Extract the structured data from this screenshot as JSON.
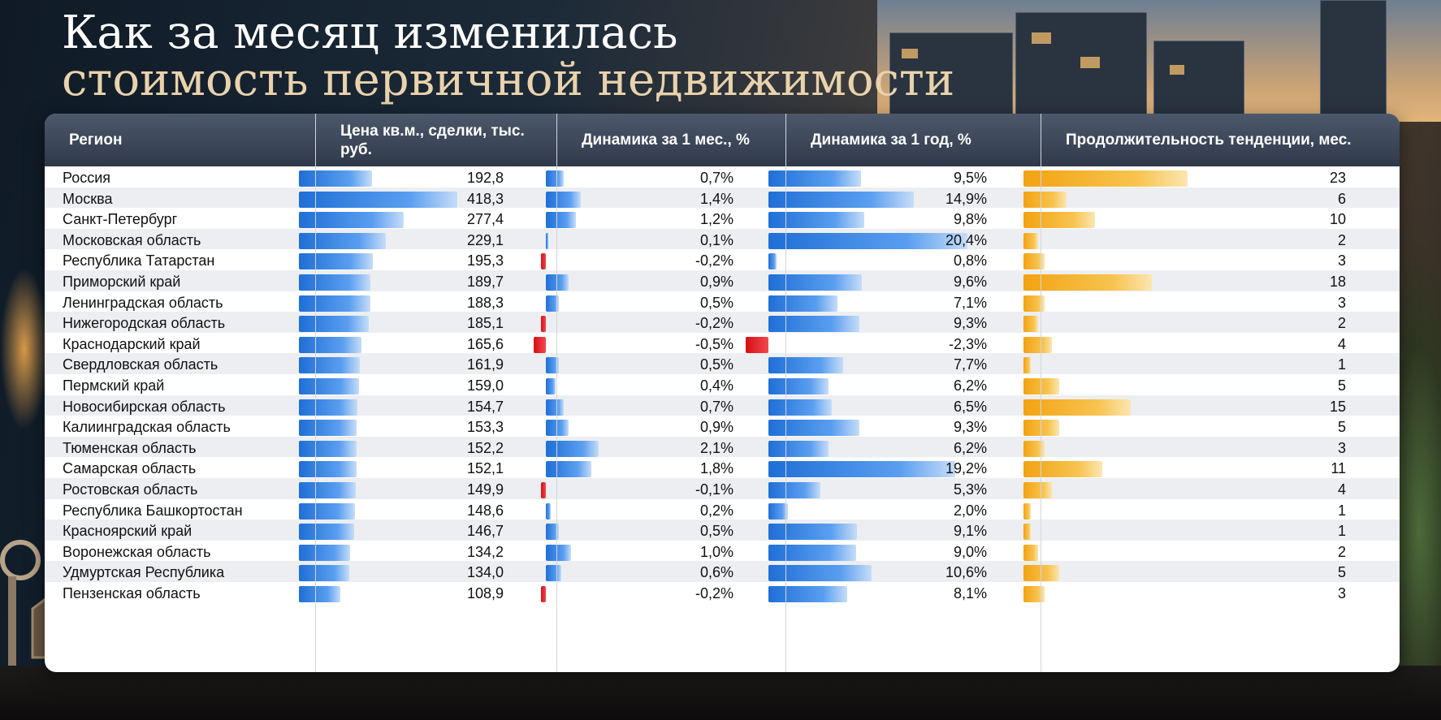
{
  "title_line1": "Как за месяц изменилась",
  "title_line2": "стоимость первичной недвижимости",
  "headers": {
    "region": "Регион",
    "price": "Цена кв.м., сделки, тыс. руб.",
    "month": "Динамика за 1 мес., %",
    "year": "Динамика за 1 год, %",
    "duration": "Продолжительность тенденции, мес."
  },
  "colors": {
    "positive": "#2b7be0",
    "negative": "#e0181e",
    "duration": "#f4aa1e",
    "header_bg": "#3a4556"
  },
  "chart_data": {
    "type": "table",
    "columns": [
      "Регион",
      "Цена кв.м., сделки, тыс. руб.",
      "Динамика за 1 мес., %",
      "Динамика за 1 год, %",
      "Продолжительность тенденции, мес."
    ],
    "rows": [
      {
        "region": "Россия",
        "price": 192.8,
        "price_text": "192,8",
        "month": 0.7,
        "month_text": "0,7%",
        "year": 9.5,
        "year_text": "9,5%",
        "duration": 23
      },
      {
        "region": "Москва",
        "price": 418.3,
        "price_text": "418,3",
        "month": 1.4,
        "month_text": "1,4%",
        "year": 14.9,
        "year_text": "14,9%",
        "duration": 6
      },
      {
        "region": "Санкт-Петербург",
        "price": 277.4,
        "price_text": "277,4",
        "month": 1.2,
        "month_text": "1,2%",
        "year": 9.8,
        "year_text": "9,8%",
        "duration": 10
      },
      {
        "region": "Московская область",
        "price": 229.1,
        "price_text": "229,1",
        "month": 0.1,
        "month_text": "0,1%",
        "year": 20.4,
        "year_text": "20,4%",
        "duration": 2
      },
      {
        "region": "Республика Татарстан",
        "price": 195.3,
        "price_text": "195,3",
        "month": -0.2,
        "month_text": "-0,2%",
        "year": 0.8,
        "year_text": "0,8%",
        "duration": 3
      },
      {
        "region": "Приморский край",
        "price": 189.7,
        "price_text": "189,7",
        "month": 0.9,
        "month_text": "0,9%",
        "year": 9.6,
        "year_text": "9,6%",
        "duration": 18
      },
      {
        "region": "Ленинградская область",
        "price": 188.3,
        "price_text": "188,3",
        "month": 0.5,
        "month_text": "0,5%",
        "year": 7.1,
        "year_text": "7,1%",
        "duration": 3
      },
      {
        "region": "Нижегородская область",
        "price": 185.1,
        "price_text": "185,1",
        "month": -0.2,
        "month_text": "-0,2%",
        "year": 9.3,
        "year_text": "9,3%",
        "duration": 2
      },
      {
        "region": "Краснодарский край",
        "price": 165.6,
        "price_text": "165,6",
        "month": -0.5,
        "month_text": "-0,5%",
        "year": -2.3,
        "year_text": "-2,3%",
        "duration": 4
      },
      {
        "region": "Свердловская область",
        "price": 161.9,
        "price_text": "161,9",
        "month": 0.5,
        "month_text": "0,5%",
        "year": 7.7,
        "year_text": "7,7%",
        "duration": 1
      },
      {
        "region": "Пермский край",
        "price": 159.0,
        "price_text": "159,0",
        "month": 0.4,
        "month_text": "0,4%",
        "year": 6.2,
        "year_text": "6,2%",
        "duration": 5
      },
      {
        "region": "Новосибирская область",
        "price": 154.7,
        "price_text": "154,7",
        "month": 0.7,
        "month_text": "0,7%",
        "year": 6.5,
        "year_text": "6,5%",
        "duration": 15
      },
      {
        "region": "Калиинградская область",
        "price": 153.3,
        "price_text": "153,3",
        "month": 0.9,
        "month_text": "0,9%",
        "year": 9.3,
        "year_text": "9,3%",
        "duration": 5
      },
      {
        "region": "Тюменская область",
        "price": 152.2,
        "price_text": "152,2",
        "month": 2.1,
        "month_text": "2,1%",
        "year": 6.2,
        "year_text": "6,2%",
        "duration": 3
      },
      {
        "region": "Самарская область",
        "price": 152.1,
        "price_text": "152,1",
        "month": 1.8,
        "month_text": "1,8%",
        "year": 19.2,
        "year_text": "19,2%",
        "duration": 11
      },
      {
        "region": "Ростовская область",
        "price": 149.9,
        "price_text": "149,9",
        "month": -0.1,
        "month_text": "-0,1%",
        "year": 5.3,
        "year_text": "5,3%",
        "duration": 4
      },
      {
        "region": "Республика Башкортостан",
        "price": 148.6,
        "price_text": "148,6",
        "month": 0.2,
        "month_text": "0,2%",
        "year": 2.0,
        "year_text": "2,0%",
        "duration": 1
      },
      {
        "region": "Красноярский край",
        "price": 146.7,
        "price_text": "146,7",
        "month": 0.5,
        "month_text": "0,5%",
        "year": 9.1,
        "year_text": "9,1%",
        "duration": 1
      },
      {
        "region": "Воронежская область",
        "price": 134.2,
        "price_text": "134,2",
        "month": 1.0,
        "month_text": "1,0%",
        "year": 9.0,
        "year_text": "9,0%",
        "duration": 2
      },
      {
        "region": "Удмуртская Республика",
        "price": 134.0,
        "price_text": "134,0",
        "month": 0.6,
        "month_text": "0,6%",
        "year": 10.6,
        "year_text": "10,6%",
        "duration": 5
      },
      {
        "region": "Пензенская область",
        "price": 108.9,
        "price_text": "108,9",
        "month": -0.2,
        "month_text": "-0,2%",
        "year": 8.1,
        "year_text": "8,1%",
        "duration": 3
      }
    ]
  }
}
